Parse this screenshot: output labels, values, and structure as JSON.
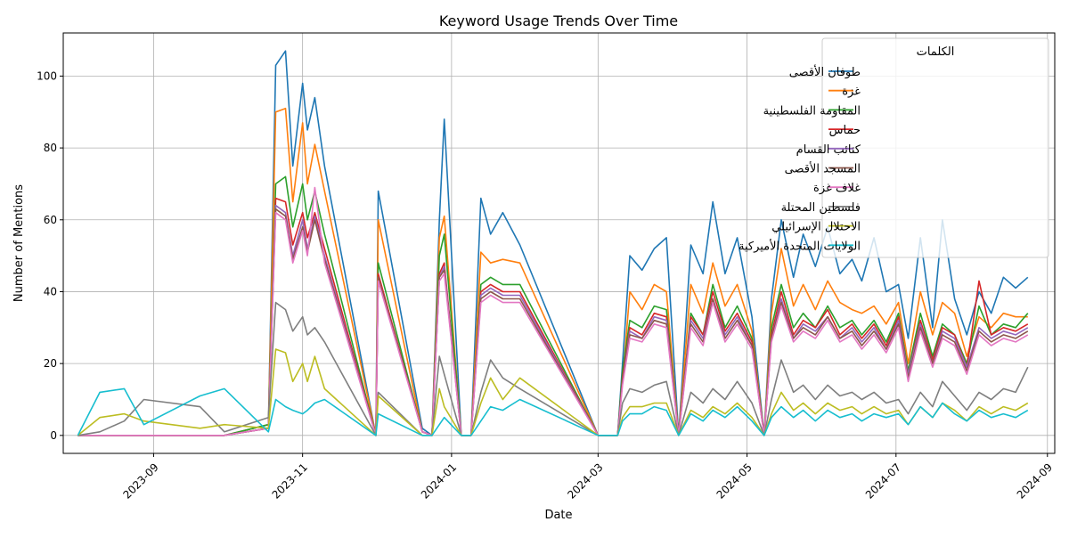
{
  "chart_data": {
    "type": "line",
    "title": "Keyword Usage Trends Over Time",
    "xlabel": "Date",
    "ylabel": "Number of Mentions",
    "ylim": [
      -5,
      112
    ],
    "xlim": [
      "2023-07-26",
      "2024-09-04"
    ],
    "x_ticks": [
      "2023-09",
      "2023-11",
      "2024-01",
      "2024-03",
      "2024-05",
      "2024-07",
      "2024-09"
    ],
    "x_tick_dates": [
      "2023-09-01",
      "2023-11-01",
      "2024-01-01",
      "2024-03-01",
      "2024-05-01",
      "2024-07-01",
      "2024-09-01"
    ],
    "y_ticks": [
      0,
      20,
      40,
      60,
      80,
      100
    ],
    "grid": true,
    "legend": {
      "title": "الكلمات",
      "placement": "top-right"
    },
    "x": [
      "2023-08-01",
      "2023-08-10",
      "2023-08-20",
      "2023-08-28",
      "2023-09-20",
      "2023-09-30",
      "2023-10-18",
      "2023-10-21",
      "2023-10-25",
      "2023-10-28",
      "2023-11-01",
      "2023-11-03",
      "2023-11-06",
      "2023-11-10",
      "2023-12-01",
      "2023-12-02",
      "2023-12-20",
      "2023-12-24",
      "2023-12-27",
      "2023-12-29",
      "2024-01-05",
      "2024-01-09",
      "2024-01-13",
      "2024-01-17",
      "2024-01-22",
      "2024-01-29",
      "2024-03-01",
      "2024-03-09",
      "2024-03-11",
      "2024-03-14",
      "2024-03-19",
      "2024-03-24",
      "2024-03-29",
      "2024-04-03",
      "2024-04-08",
      "2024-04-13",
      "2024-04-17",
      "2024-04-22",
      "2024-04-27",
      "2024-05-03",
      "2024-05-08",
      "2024-05-11",
      "2024-05-15",
      "2024-05-20",
      "2024-05-24",
      "2024-05-29",
      "2024-06-03",
      "2024-06-08",
      "2024-06-13",
      "2024-06-17",
      "2024-06-22",
      "2024-06-27",
      "2024-07-02",
      "2024-07-06",
      "2024-07-11",
      "2024-07-16",
      "2024-07-20",
      "2024-07-25",
      "2024-07-30",
      "2024-08-04",
      "2024-08-09",
      "2024-08-14",
      "2024-08-19",
      "2024-08-24"
    ],
    "series": [
      {
        "name": "طوفان الأقصى",
        "color": "#1f77b4",
        "values": [
          0,
          0,
          0,
          0,
          0,
          0,
          3,
          103,
          107,
          75,
          98,
          85,
          94,
          75,
          0,
          68,
          2,
          0,
          60,
          88,
          0,
          0,
          66,
          56,
          62,
          53,
          0,
          0,
          20,
          50,
          46,
          52,
          55,
          0,
          53,
          45,
          65,
          45,
          55,
          33,
          0,
          38,
          60,
          44,
          56,
          47,
          58,
          45,
          49,
          43,
          55,
          40,
          42,
          27,
          55,
          30,
          60,
          38,
          28,
          40,
          34,
          44,
          41,
          44
        ]
      },
      {
        "name": "غزة",
        "color": "#ff7f0e",
        "values": [
          0,
          0,
          0,
          0,
          0,
          0,
          3,
          90,
          91,
          65,
          87,
          70,
          81,
          68,
          0,
          60,
          1,
          0,
          55,
          61,
          0,
          0,
          51,
          48,
          49,
          48,
          0,
          0,
          15,
          40,
          35,
          42,
          40,
          0,
          42,
          34,
          48,
          36,
          42,
          29,
          0,
          34,
          52,
          36,
          42,
          35,
          43,
          37,
          35,
          34,
          36,
          31,
          37,
          20,
          40,
          28,
          37,
          34,
          22,
          33,
          30,
          34,
          33,
          33
        ]
      },
      {
        "name": "المقاومة الفلسطينية",
        "color": "#2ca02c",
        "values": [
          0,
          0,
          0,
          0,
          0,
          0,
          3,
          70,
          72,
          58,
          70,
          60,
          68,
          56,
          0,
          48,
          1,
          0,
          50,
          56,
          0,
          0,
          42,
          44,
          42,
          42,
          0,
          0,
          18,
          32,
          30,
          36,
          35,
          0,
          34,
          28,
          42,
          30,
          36,
          27,
          0,
          30,
          42,
          30,
          34,
          30,
          36,
          30,
          32,
          28,
          32,
          26,
          34,
          18,
          34,
          22,
          31,
          28,
          20,
          36,
          28,
          31,
          30,
          34
        ]
      },
      {
        "name": "حماس",
        "color": "#d62728",
        "values": [
          0,
          0,
          0,
          0,
          0,
          0,
          2,
          66,
          65,
          53,
          62,
          55,
          62,
          52,
          0,
          45,
          1,
          0,
          45,
          48,
          0,
          0,
          40,
          42,
          40,
          40,
          0,
          0,
          16,
          30,
          28,
          34,
          33,
          0,
          33,
          28,
          40,
          29,
          34,
          26,
          0,
          28,
          40,
          28,
          32,
          30,
          35,
          28,
          31,
          27,
          31,
          25,
          33,
          17,
          32,
          21,
          30,
          28,
          19,
          43,
          28,
          30,
          29,
          31
        ]
      },
      {
        "name": "كتائب القسام",
        "color": "#9467bd",
        "values": [
          0,
          0,
          0,
          0,
          0,
          0,
          2,
          64,
          62,
          50,
          60,
          52,
          61,
          50,
          0,
          44,
          1,
          0,
          44,
          47,
          0,
          0,
          39,
          41,
          39,
          39,
          0,
          0,
          15,
          29,
          27,
          33,
          32,
          0,
          32,
          27,
          38,
          28,
          33,
          25,
          0,
          27,
          38,
          27,
          31,
          29,
          33,
          27,
          30,
          26,
          30,
          24,
          32,
          17,
          31,
          20,
          29,
          27,
          19,
          30,
          27,
          29,
          28,
          30
        ]
      },
      {
        "name": "المسجد الأقصى",
        "color": "#8c564b",
        "values": [
          0,
          0,
          0,
          0,
          0,
          0,
          2,
          63,
          61,
          49,
          58,
          51,
          60,
          49,
          0,
          44,
          1,
          0,
          44,
          46,
          0,
          0,
          38,
          40,
          38,
          38,
          0,
          0,
          15,
          28,
          27,
          32,
          31,
          0,
          31,
          26,
          38,
          27,
          32,
          25,
          0,
          27,
          37,
          27,
          30,
          28,
          33,
          27,
          29,
          25,
          29,
          24,
          31,
          16,
          30,
          20,
          28,
          26,
          18,
          29,
          26,
          28,
          27,
          29
        ]
      },
      {
        "name": "غلاف غزة",
        "color": "#e377c2",
        "values": [
          0,
          0,
          0,
          0,
          0,
          0,
          2,
          62,
          60,
          48,
          57,
          50,
          69,
          48,
          0,
          43,
          1,
          0,
          43,
          45,
          0,
          0,
          37,
          39,
          37,
          37,
          0,
          0,
          14,
          27,
          26,
          31,
          30,
          0,
          30,
          25,
          37,
          26,
          31,
          24,
          0,
          26,
          36,
          26,
          29,
          27,
          32,
          26,
          28,
          24,
          28,
          23,
          30,
          15,
          29,
          19,
          27,
          25,
          17,
          28,
          25,
          27,
          26,
          28
        ]
      },
      {
        "name": "فلسطين المحتلة",
        "color": "#7f7f7f",
        "values": [
          0,
          1,
          4,
          10,
          8,
          1,
          5,
          37,
          35,
          29,
          33,
          28,
          30,
          26,
          0,
          12,
          0,
          0,
          22,
          17,
          0,
          0,
          12,
          21,
          16,
          13,
          0,
          0,
          9,
          13,
          12,
          14,
          15,
          0,
          12,
          9,
          13,
          10,
          15,
          9,
          0,
          10,
          21,
          12,
          14,
          10,
          14,
          11,
          12,
          10,
          12,
          9,
          10,
          6,
          12,
          8,
          15,
          11,
          7,
          12,
          10,
          13,
          12,
          19
        ]
      },
      {
        "name": "الاحتلال الإسرائيلي",
        "color": "#bcbd22",
        "values": [
          0,
          5,
          6,
          4,
          2,
          3,
          2,
          24,
          23,
          15,
          20,
          15,
          22,
          13,
          0,
          11,
          0,
          0,
          13,
          8,
          0,
          0,
          9,
          16,
          10,
          16,
          0,
          0,
          5,
          8,
          8,
          9,
          9,
          0,
          7,
          5,
          8,
          6,
          9,
          5,
          0,
          6,
          12,
          7,
          9,
          6,
          9,
          7,
          8,
          6,
          8,
          6,
          7,
          3,
          8,
          5,
          9,
          7,
          4,
          8,
          6,
          8,
          7,
          9
        ]
      },
      {
        "name": "الولايات المتحدة الأميركية",
        "color": "#17becf",
        "values": [
          0,
          12,
          13,
          3,
          11,
          13,
          1,
          10,
          8,
          7,
          6,
          7,
          9,
          10,
          0,
          6,
          0,
          0,
          3,
          5,
          0,
          0,
          4,
          8,
          7,
          10,
          0,
          0,
          4,
          6,
          6,
          8,
          7,
          0,
          6,
          4,
          7,
          5,
          8,
          4,
          0,
          5,
          8,
          5,
          7,
          4,
          7,
          5,
          6,
          4,
          6,
          5,
          6,
          3,
          8,
          5,
          9,
          6,
          4,
          7,
          5,
          6,
          5,
          7
        ]
      }
    ]
  }
}
